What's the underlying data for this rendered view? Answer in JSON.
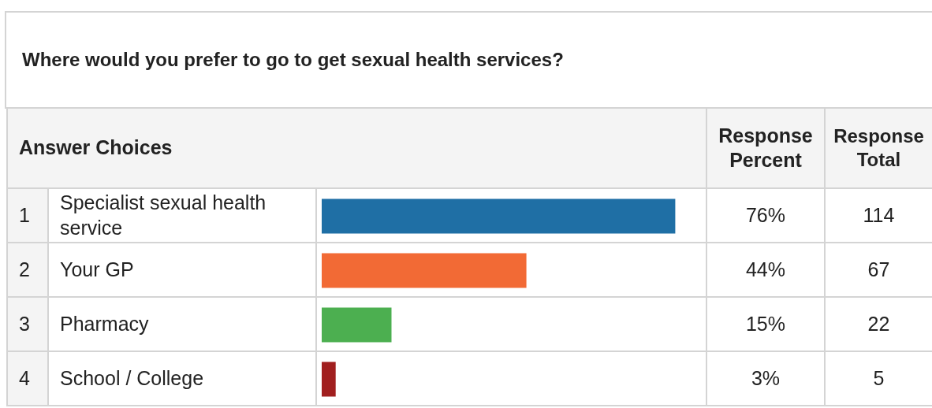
{
  "chart_data": {
    "type": "bar",
    "orientation": "horizontal",
    "title": "Where would you prefer to go to get sexual health services?",
    "categories": [
      "Specialist sexual health service",
      "Your GP",
      "Pharmacy",
      "School / College"
    ],
    "values": [
      76,
      44,
      15,
      3
    ],
    "colors": [
      "#1f6fa5",
      "#f26a35",
      "#4caf50",
      "#a11f1f"
    ],
    "value_labels": [
      "76%",
      "44%",
      "15%",
      "3%"
    ],
    "annotations": [
      "Answer Choices",
      "Response Percent",
      "Response Total",
      "1",
      "2",
      "3",
      "4",
      "114",
      "67",
      "22",
      "5"
    ],
    "tick_labels": false
  }
}
